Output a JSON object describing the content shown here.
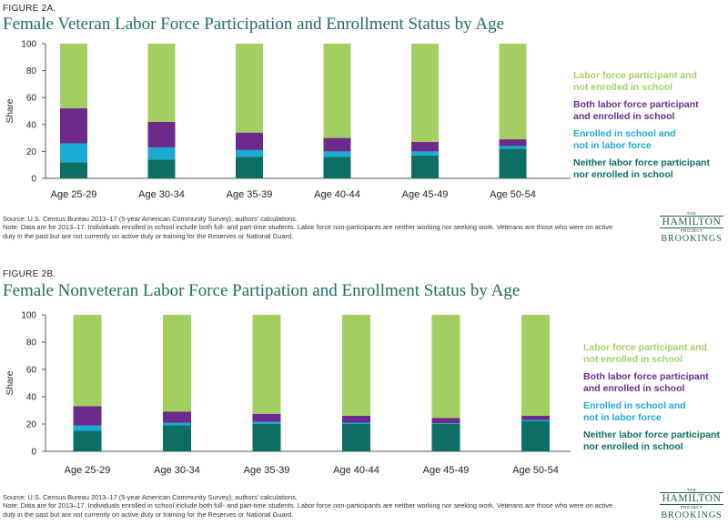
{
  "colors": {
    "neither": "#0d6e64",
    "enrolled_not_lf": "#1aaad4",
    "both": "#6c2a8a",
    "lf_not_enrolled": "#a3cf62",
    "title": "#1e6b66"
  },
  "logo": {
    "the": "THE",
    "hamilton": "HAMILTON",
    "project": "PROJECT",
    "brookings": "BROOKINGS"
  },
  "figures": [
    {
      "label": "FIGURE 2A.",
      "title": "Female Veteran Labor Force Participation and Enrollment Status by Age",
      "source": "Source: U.S. Census Bureau 2013–17 (5-year American Community Survey); authors’ calculations.",
      "note": "Note: Data are for 2013–17. Individuals enrolled in school include both full- and part-time students. Labor force non-participants are neither working nor seeking work. Veterans are those who were on active duty in the past but are not currently on active duty or training for the Reserves or National Guard."
    },
    {
      "label": "FIGURE 2B.",
      "title": "Female Nonveteran Labor Force Partipation and Enrollment Status by Age",
      "source": "Source: U.S. Census Bureau 2013–17 (5-year American Community Survey); authors’ calculations.",
      "note": "Note: Data are for 2013–17. Individuals enrolled in school include both full- and part-time students. Labor force non-participants are neither working nor seeking work. Veterans are those who were on active duty in the past but are not currently on active duty or training for the Reserves or National Guard."
    }
  ],
  "chart_data": [
    {
      "type": "bar",
      "stacked": true,
      "ylabel": "Share",
      "ylim": [
        0,
        100
      ],
      "yticks": [
        0,
        20,
        40,
        60,
        80,
        100
      ],
      "grid": false,
      "legend_position": "right",
      "categories": [
        "Age 25-29",
        "Age 30-34",
        "Age 35-39",
        "Age 40-44",
        "Age 45-49",
        "Age 50-54"
      ],
      "series": [
        {
          "name": "Neither labor force participant nor enrolled in school",
          "key": "neither",
          "values": [
            12,
            14,
            16,
            16,
            17,
            22
          ]
        },
        {
          "name": "Enrolled in school and not in labor force",
          "key": "enrolled_not_lf",
          "values": [
            14,
            9,
            5,
            4,
            3,
            2
          ]
        },
        {
          "name": "Both labor force participant and enrolled in school",
          "key": "both",
          "values": [
            26,
            19,
            13,
            10,
            7,
            5
          ]
        },
        {
          "name": "Labor force participant and not enrolled in school",
          "key": "lf_not_enrolled",
          "values": [
            48,
            58,
            66,
            70,
            73,
            71
          ]
        }
      ]
    },
    {
      "type": "bar",
      "stacked": true,
      "ylabel": "Share",
      "ylim": [
        0,
        100
      ],
      "yticks": [
        0,
        20,
        40,
        60,
        80,
        100
      ],
      "grid": false,
      "legend_position": "right",
      "categories": [
        "Age 25-29",
        "Age 30-34",
        "Age 35-39",
        "Age 40-44",
        "Age 45-49",
        "Age 50-54"
      ],
      "series": [
        {
          "name": "Neither labor force participant nor enrolled in school",
          "key": "neither",
          "values": [
            15,
            19,
            20,
            20,
            20,
            22
          ]
        },
        {
          "name": "Enrolled in school and not in labor force",
          "key": "enrolled_not_lf",
          "values": [
            4,
            2,
            1.5,
            1,
            0.5,
            1
          ]
        },
        {
          "name": "Both labor force participant and enrolled in school",
          "key": "both",
          "values": [
            14,
            8,
            6,
            5,
            4,
            3
          ]
        },
        {
          "name": "Labor force participant and not enrolled in school",
          "key": "lf_not_enrolled",
          "values": [
            67,
            71,
            72.5,
            74,
            75.5,
            74
          ]
        }
      ]
    }
  ]
}
